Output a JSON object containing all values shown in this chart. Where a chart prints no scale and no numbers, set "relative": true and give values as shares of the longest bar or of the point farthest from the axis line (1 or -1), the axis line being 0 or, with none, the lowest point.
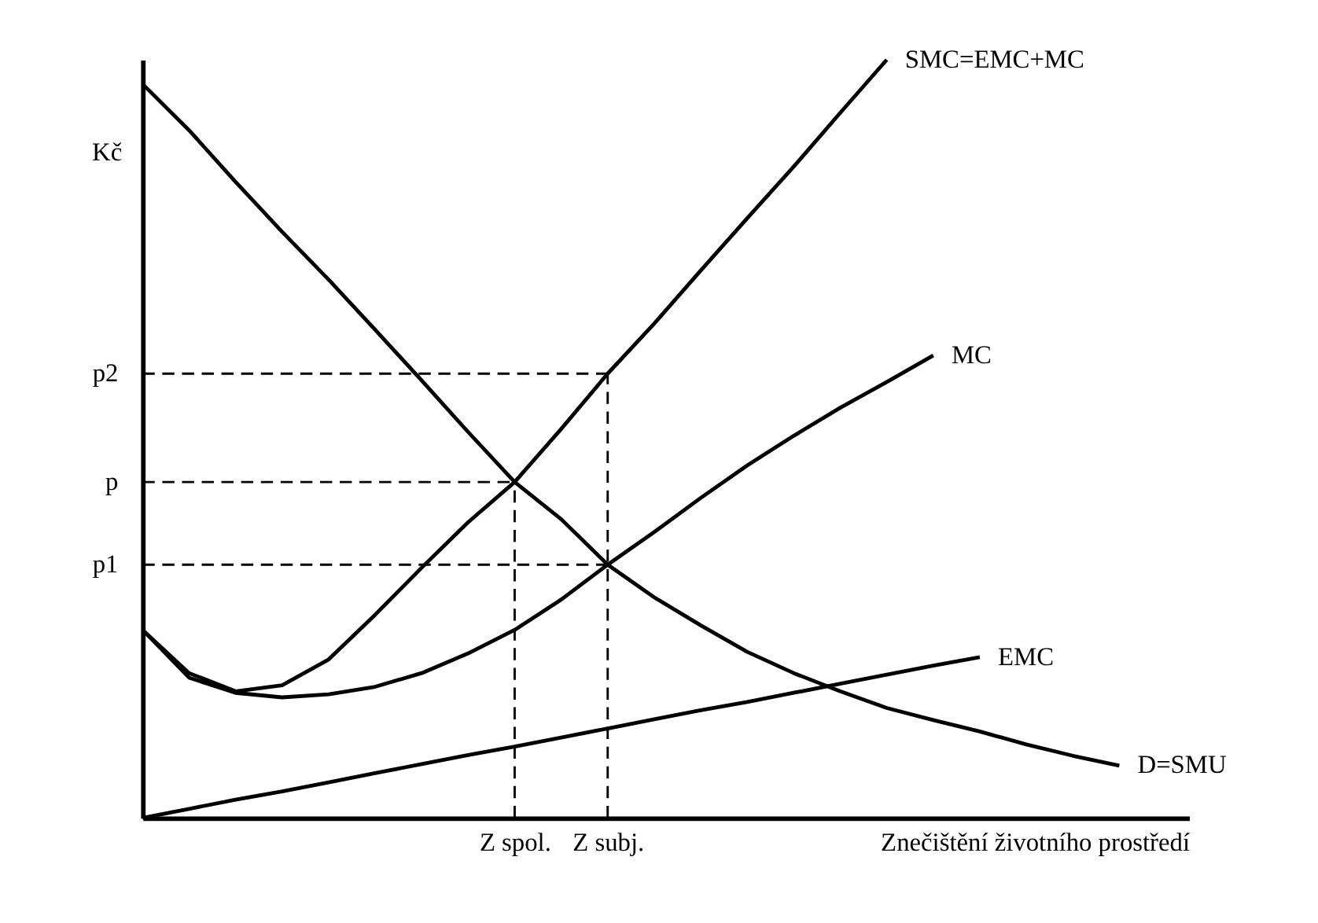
{
  "chart_data": {
    "type": "line",
    "relative": true,
    "xlabel": "Znečištění životního prostředí",
    "ylabel": "Kč",
    "grid": false,
    "marker": "none",
    "categories": [
      null,
      null,
      null,
      null,
      null,
      null,
      null,
      null,
      "Z spol.",
      null,
      "Z subj.",
      null,
      null,
      null,
      null,
      null,
      null,
      null,
      null,
      null,
      null,
      null
    ],
    "series": [
      {
        "name": "SMC=EMC+MC",
        "color": "#000000",
        "line_style": "solid",
        "values": [
          0.248,
          0.191,
          0.167,
          0.175,
          0.209,
          0.268,
          0.33,
          0.39,
          0.443,
          0.513,
          0.586,
          0.652,
          0.722,
          0.791,
          0.859,
          0.93,
          1.0,
          null,
          null,
          null,
          null,
          null
        ]
      },
      {
        "name": "MC",
        "color": "#000000",
        "line_style": "solid",
        "values": [
          0.248,
          0.185,
          0.165,
          0.159,
          0.163,
          0.173,
          0.191,
          0.217,
          0.248,
          0.288,
          0.334,
          0.377,
          0.422,
          0.465,
          0.504,
          0.541,
          0.575,
          0.61,
          null,
          null,
          null,
          null
        ]
      },
      {
        "name": "EMC",
        "color": "#000000",
        "line_style": "solid",
        "values": [
          0,
          0.012,
          0.024,
          0.035,
          0.047,
          0.059,
          0.071,
          0.083,
          0.094,
          0.106,
          0.118,
          0.13,
          0.142,
          0.153,
          0.165,
          0.177,
          0.189,
          0.201,
          0.212,
          null,
          null,
          null
        ]
      },
      {
        "name": "D=SMU",
        "color": "#000000",
        "line_style": "solid",
        "values": [
          0.968,
          0.907,
          0.839,
          0.773,
          0.71,
          0.644,
          0.577,
          0.509,
          0.443,
          0.394,
          0.334,
          0.291,
          0.254,
          0.219,
          0.191,
          0.167,
          0.145,
          0.129,
          0.114,
          0.097,
          0.082,
          0.069
        ]
      }
    ],
    "ref_lines": [
      {
        "axis": "y",
        "value": 0.586,
        "label": "p2",
        "color": "#000000",
        "line_style": "dashed"
      },
      {
        "axis": "y",
        "value": 0.443,
        "label": "p",
        "color": "#000000",
        "line_style": "dashed"
      },
      {
        "axis": "y",
        "value": 0.334,
        "label": "p1",
        "color": "#000000",
        "line_style": "dashed"
      },
      {
        "axis": "x",
        "value": "Z spol.",
        "color": "#000000",
        "line_style": "dashed"
      },
      {
        "axis": "x",
        "value": "Z subj.",
        "color": "#000000",
        "line_style": "dashed"
      }
    ]
  }
}
